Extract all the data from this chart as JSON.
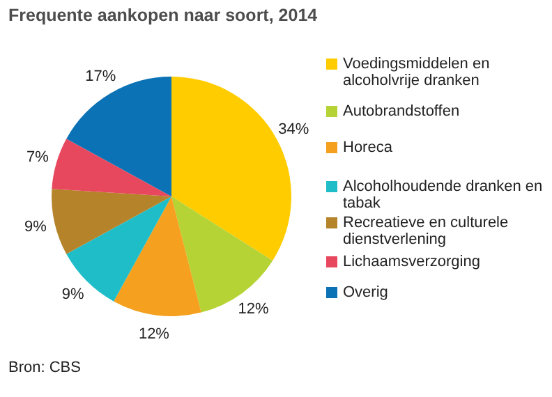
{
  "chart_data": {
    "type": "pie",
    "title": "Frequente aankopen naar soort, 2014",
    "categories": [
      "Voedingsmiddelen en alcoholvrije dranken",
      "Autobrandstoffen",
      "Horeca",
      "Alcoholhoudende dranken en tabak",
      "Recreatieve en culturele dienstverlening",
      "Lichaamsverzorging",
      "Overig"
    ],
    "values": [
      34,
      12,
      12,
      9,
      9,
      7,
      17
    ],
    "colors": [
      "#ffcc00",
      "#b5d334",
      "#f5a01f",
      "#1fbdc8",
      "#b5842a",
      "#e8485e",
      "#0a72b5"
    ],
    "value_labels": [
      "34%",
      "12%",
      "12%",
      "9%",
      "9%",
      "7%",
      "17%"
    ],
    "legend": "right",
    "annotations": [
      "Bron: CBS"
    ]
  }
}
